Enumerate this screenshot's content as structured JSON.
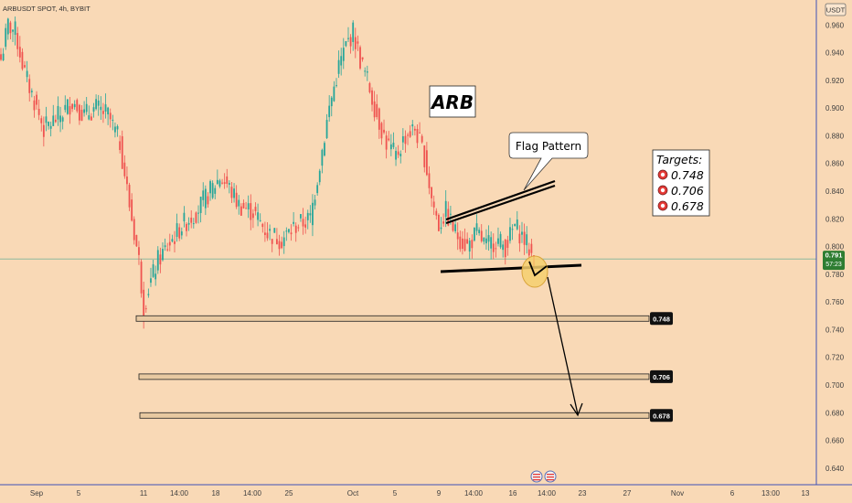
{
  "header": {
    "symbol_line": "ARBUSDT SPOT, 4h, BYBIT",
    "currency": "USDT"
  },
  "annotations": {
    "title": "ARB",
    "pattern_label": "Flag Pattern",
    "targets_title": "Targets:",
    "targets": [
      "0.748",
      "0.706",
      "0.678"
    ]
  },
  "price_tag": {
    "price": "0.791",
    "countdown": "57:23"
  },
  "colors": {
    "background": "#f9d9b6",
    "up": "#26a69a",
    "down": "#ef5350",
    "price_tag": "#2e7d32",
    "axis_line": "#3f51b5"
  },
  "chart_data": {
    "type": "candlestick",
    "timeframe": "4h",
    "y_ticks": [
      0.64,
      0.66,
      0.68,
      0.7,
      0.72,
      0.74,
      0.76,
      0.78,
      0.8,
      0.82,
      0.84,
      0.86,
      0.88,
      0.9,
      0.92,
      0.94,
      0.96
    ],
    "y_tick_labels": [
      "0.640",
      "0.660",
      "0.680",
      "0.700",
      "0.720",
      "0.740",
      "0.760",
      "0.780",
      "0.800",
      "0.820",
      "0.840",
      "0.860",
      "0.880",
      "0.900",
      "0.920",
      "0.940",
      "0.960"
    ],
    "ylim": [
      0.628,
      0.978
    ],
    "x_labels": [
      "Sep",
      "5",
      "11",
      "14:00",
      "18",
      "14:00",
      "25",
      "Oct",
      "5",
      "9",
      "14:00",
      "16",
      "14:00",
      "23",
      "27",
      "Nov",
      "6",
      "13:00",
      "13"
    ],
    "current_price": 0.791,
    "target_levels": [
      0.748,
      0.706,
      0.678
    ],
    "target_level_labels": [
      "0.748",
      "0.706",
      "0.678"
    ],
    "close_path": [
      {
        "bar": 0,
        "price": 0.935
      },
      {
        "bar": 3,
        "price": 0.96
      },
      {
        "bar": 6,
        "price": 0.955
      },
      {
        "bar": 10,
        "price": 0.925
      },
      {
        "bar": 14,
        "price": 0.905
      },
      {
        "bar": 18,
        "price": 0.885
      },
      {
        "bar": 25,
        "price": 0.895
      },
      {
        "bar": 30,
        "price": 0.905
      },
      {
        "bar": 35,
        "price": 0.895
      },
      {
        "bar": 40,
        "price": 0.9
      },
      {
        "bar": 45,
        "price": 0.895
      },
      {
        "bar": 50,
        "price": 0.875
      },
      {
        "bar": 54,
        "price": 0.83
      },
      {
        "bar": 58,
        "price": 0.79
      },
      {
        "bar": 60,
        "price": 0.755
      },
      {
        "bar": 62,
        "price": 0.77
      },
      {
        "bar": 66,
        "price": 0.79
      },
      {
        "bar": 70,
        "price": 0.8
      },
      {
        "bar": 76,
        "price": 0.815
      },
      {
        "bar": 82,
        "price": 0.825
      },
      {
        "bar": 88,
        "price": 0.84
      },
      {
        "bar": 92,
        "price": 0.85
      },
      {
        "bar": 95,
        "price": 0.845
      },
      {
        "bar": 100,
        "price": 0.83
      },
      {
        "bar": 106,
        "price": 0.825
      },
      {
        "bar": 112,
        "price": 0.81
      },
      {
        "bar": 118,
        "price": 0.805
      },
      {
        "bar": 124,
        "price": 0.815
      },
      {
        "bar": 130,
        "price": 0.82
      },
      {
        "bar": 134,
        "price": 0.86
      },
      {
        "bar": 138,
        "price": 0.9
      },
      {
        "bar": 142,
        "price": 0.93
      },
      {
        "bar": 145,
        "price": 0.945
      },
      {
        "bar": 148,
        "price": 0.955
      },
      {
        "bar": 151,
        "price": 0.935
      },
      {
        "bar": 154,
        "price": 0.92
      },
      {
        "bar": 158,
        "price": 0.895
      },
      {
        "bar": 162,
        "price": 0.875
      },
      {
        "bar": 166,
        "price": 0.865
      },
      {
        "bar": 170,
        "price": 0.88
      },
      {
        "bar": 174,
        "price": 0.885
      },
      {
        "bar": 178,
        "price": 0.865
      },
      {
        "bar": 181,
        "price": 0.835
      },
      {
        "bar": 184,
        "price": 0.815
      },
      {
        "bar": 187,
        "price": 0.825
      },
      {
        "bar": 191,
        "price": 0.81
      },
      {
        "bar": 196,
        "price": 0.8
      },
      {
        "bar": 200,
        "price": 0.81
      },
      {
        "bar": 204,
        "price": 0.8
      },
      {
        "bar": 208,
        "price": 0.805
      },
      {
        "bar": 212,
        "price": 0.8
      },
      {
        "bar": 216,
        "price": 0.815
      },
      {
        "bar": 220,
        "price": 0.805
      },
      {
        "bar": 224,
        "price": 0.791
      }
    ]
  }
}
